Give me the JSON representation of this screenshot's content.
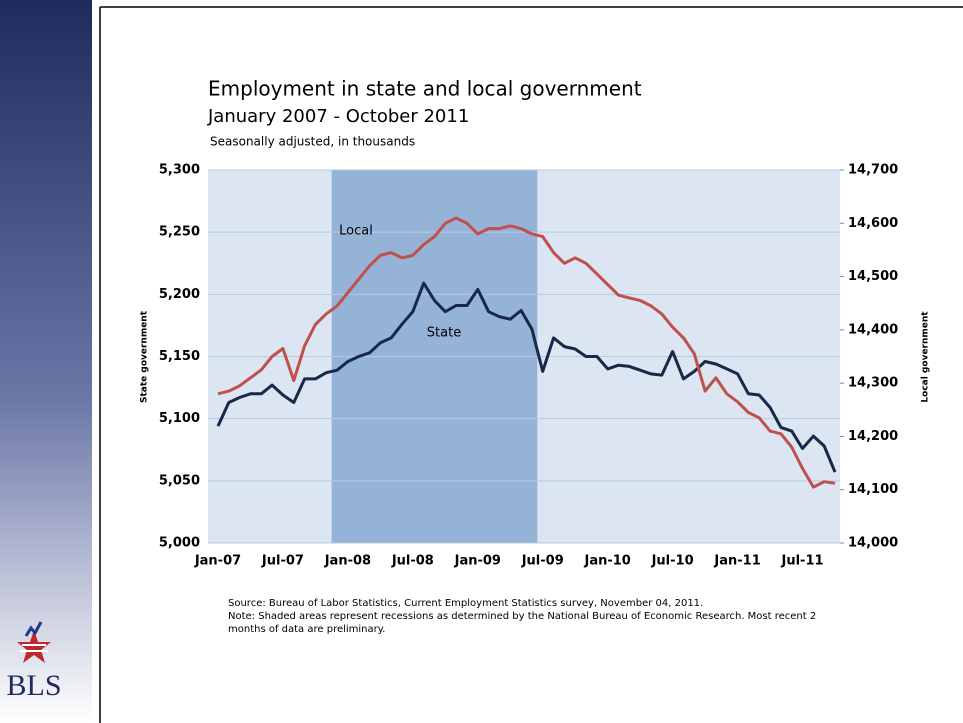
{
  "chart_data": {
    "type": "line",
    "title": "Employment in state and local government",
    "subtitle": "January 2007 - October 2011",
    "note_units": "Seasonally adjusted, in thousands",
    "y_label": "State government",
    "y2_label": "Local government",
    "categories": [
      "Jan-07",
      null,
      null,
      null,
      null,
      null,
      "Jul-07",
      null,
      null,
      null,
      null,
      null,
      "Jan-08",
      null,
      null,
      null,
      null,
      null,
      "Jul-08",
      null,
      null,
      null,
      null,
      null,
      "Jan-09",
      null,
      null,
      null,
      null,
      null,
      "Jul-09",
      null,
      null,
      null,
      null,
      null,
      "Jan-10",
      null,
      null,
      null,
      null,
      null,
      "Jul-10",
      null,
      null,
      null,
      null,
      null,
      "Jan-11",
      null,
      null,
      null,
      null,
      null,
      "Jul-11",
      null,
      null,
      null
    ],
    "recession": {
      "start": 11,
      "end": 29,
      "color": "#95b3d7"
    },
    "plot_background": "#dce6f2",
    "series": [
      {
        "name": "State",
        "color": "#17284a",
        "values": [
          5094,
          5113,
          5117,
          5120,
          5120,
          5127,
          5119,
          5113,
          5132,
          5132,
          5137,
          5139,
          5146,
          5150,
          5153,
          5161,
          5165,
          5176,
          5186,
          5209,
          5195,
          5186,
          5191,
          5191,
          5204,
          5186,
          5182,
          5180,
          5187,
          5172,
          5138,
          5165,
          5158,
          5156,
          5150,
          5150,
          5140,
          5143,
          5142,
          5139,
          5136,
          5135,
          5154,
          5132,
          5138,
          5146,
          5144,
          5140,
          5136,
          5120,
          5119,
          5109,
          5093,
          5090,
          5076,
          5086,
          5078,
          5057
        ]
      },
      {
        "name": "Local",
        "color": "#c0504d",
        "axis": "y2",
        "values": [
          14280,
          14285,
          14295,
          14310,
          14325,
          14350,
          14365,
          14305,
          14370,
          14410,
          14430,
          14445,
          14470,
          14495,
          14520,
          14540,
          14545,
          14535,
          14540,
          14560,
          14575,
          14600,
          14610,
          14600,
          14580,
          14590,
          14590,
          14595,
          14590,
          14580,
          14575,
          14545,
          14525,
          14535,
          14525,
          14505,
          14485,
          14465,
          14460,
          14455,
          14445,
          14430,
          14405,
          14385,
          14355,
          14285,
          14310,
          14280,
          14265,
          14245,
          14235,
          14210,
          14205,
          14180,
          14140,
          14105,
          14115,
          14112
        ]
      }
    ],
    "ylim": [
      5000,
      5300
    ],
    "yticks": [
      {
        "value": 5000,
        "label": "5,000"
      },
      {
        "value": 5050,
        "label": "5,050"
      },
      {
        "value": 5100,
        "label": "5,100"
      },
      {
        "value": 5150,
        "label": "5,150"
      },
      {
        "value": 5200,
        "label": "5,200"
      },
      {
        "value": 5250,
        "label": "5,250"
      },
      {
        "value": 5300,
        "label": "5,300"
      }
    ],
    "y2lim": [
      14000,
      14700
    ],
    "y2ticks": [
      {
        "value": 14000,
        "label": "14,000"
      },
      {
        "value": 14100,
        "label": "14,100"
      },
      {
        "value": 14200,
        "label": "14,200"
      },
      {
        "value": 14300,
        "label": "14,300"
      },
      {
        "value": 14400,
        "label": "14,400"
      },
      {
        "value": 14500,
        "label": "14,500"
      },
      {
        "value": 14600,
        "label": "14,600"
      },
      {
        "value": 14700,
        "label": "14,700"
      }
    ],
    "grid": true,
    "source": "Source: Bureau of Labor Statistics, Current Employment Statistics survey, November 04, 2011.",
    "note": "Note: Shaded areas represent recessions as determined by the National Bureau of Economic Research. Most recent 2 months of data are preliminary.",
    "logo_text": "BLS"
  }
}
